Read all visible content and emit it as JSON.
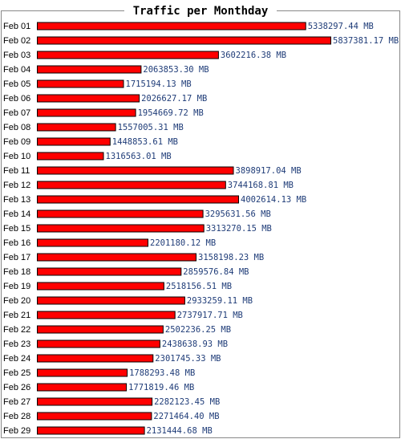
{
  "chart_data": {
    "type": "bar",
    "orientation": "horizontal",
    "title": "Traffic per Monthday",
    "unit": "MB",
    "bar_color": "#ff0000",
    "value_label_color": "#1f3c78",
    "categories": [
      "Feb 01",
      "Feb 02",
      "Feb 03",
      "Feb 04",
      "Feb 05",
      "Feb 06",
      "Feb 07",
      "Feb 08",
      "Feb 09",
      "Feb 10",
      "Feb 11",
      "Feb 12",
      "Feb 13",
      "Feb 14",
      "Feb 15",
      "Feb 16",
      "Feb 17",
      "Feb 18",
      "Feb 19",
      "Feb 20",
      "Feb 21",
      "Feb 22",
      "Feb 23",
      "Feb 24",
      "Feb 25",
      "Feb 26",
      "Feb 27",
      "Feb 28",
      "Feb 29"
    ],
    "values": [
      5338297.44,
      5837381.17,
      3602216.38,
      2063853.3,
      1715194.13,
      2026627.17,
      1954669.72,
      1557005.31,
      1448853.61,
      1316563.01,
      3898917.04,
      3744168.81,
      4002614.13,
      3295631.56,
      3313270.15,
      2201180.12,
      3158198.23,
      2859576.84,
      2518156.51,
      2933259.11,
      2737917.71,
      2502236.25,
      2438638.93,
      2301745.33,
      1788293.48,
      1771819.46,
      2282123.45,
      2271464.4,
      2131444.68
    ],
    "value_labels": [
      "5338297.44 MB",
      "5837381.17 MB",
      "3602216.38 MB",
      "2063853.30 MB",
      "1715194.13 MB",
      "2026627.17 MB",
      "1954669.72 MB",
      "1557005.31 MB",
      "1448853.61 MB",
      "1316563.01 MB",
      "3898917.04 MB",
      "3744168.81 MB",
      "4002614.13 MB",
      "3295631.56 MB",
      "3313270.15 MB",
      "2201180.12 MB",
      "3158198.23 MB",
      "2859576.84 MB",
      "2518156.51 MB",
      "2933259.11 MB",
      "2737917.71 MB",
      "2502236.25 MB",
      "2438638.93 MB",
      "2301745.33 MB",
      "1788293.48 MB",
      "1771819.46 MB",
      "2282123.45 MB",
      "2271464.40 MB",
      "2131444.68 MB"
    ]
  }
}
